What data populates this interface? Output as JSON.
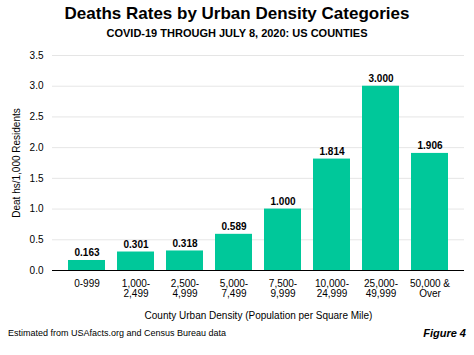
{
  "chart_data": {
    "type": "bar",
    "title": "Deaths Rates by Urban Density Categories",
    "subtitle": "COVID-19 THROUGH JULY 8, 2020: US COUNTIES",
    "categories": [
      "0-999",
      "1,000-\n2,499",
      "2,500-\n4,999",
      "5,000-\n7,499",
      "7,500-\n9,999",
      "10,000-\n24,999",
      "25,000-\n49,999",
      "50,000 &\nOver"
    ],
    "values": [
      0.163,
      0.301,
      0.318,
      0.589,
      1.0,
      1.814,
      3.0,
      1.906
    ],
    "value_labels": [
      "0.163",
      "0.301",
      "0.318",
      "0.589",
      "1.000",
      "1.814",
      "3.000",
      "1.906"
    ],
    "data_labels": true,
    "color": "#00C89A",
    "xlabel": "County Urban Density (Population per Square Mile)",
    "ylabel": "Deat hs/1,000 Residents",
    "ylim": [
      0,
      3.5
    ],
    "yticks": [
      {
        "value": 0,
        "label": "0.0"
      },
      0.5,
      {
        "value": 1,
        "label": "1.0"
      },
      1.5,
      {
        "value": 2,
        "label": "2.0"
      },
      2.5,
      {
        "value": 3,
        "label": "3.0"
      },
      3.5
    ],
    "grid": true,
    "footnote": "Estimated from USAfacts.org and Census Bureau data",
    "figure_label": "Figure 4"
  }
}
